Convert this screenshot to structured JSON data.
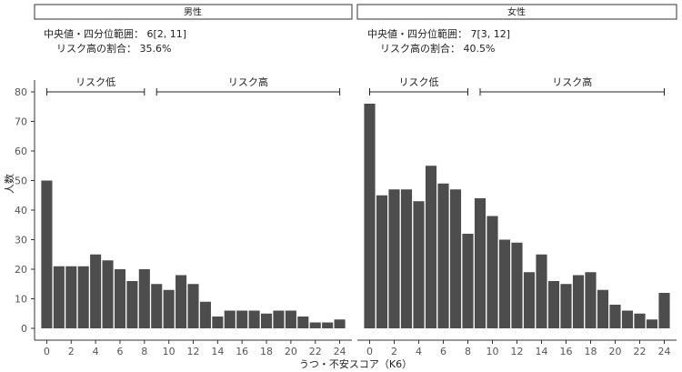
{
  "chart_data": {
    "type": "bar",
    "xlabel": "うつ・不安スコア（K6）",
    "ylabel": "人数",
    "ylim": [
      -4,
      84
    ],
    "yticks": [
      0,
      10,
      20,
      30,
      40,
      50,
      60,
      70,
      80
    ],
    "xlim": [
      -1,
      25
    ],
    "xticks": [
      0,
      2,
      4,
      6,
      8,
      10,
      12,
      14,
      16,
      18,
      20,
      22,
      24
    ],
    "x": [
      0,
      1,
      2,
      3,
      4,
      5,
      6,
      7,
      8,
      9,
      10,
      11,
      12,
      13,
      14,
      15,
      16,
      17,
      18,
      19,
      20,
      21,
      22,
      23,
      24
    ],
    "bar_color": "#4d4d4d",
    "grid": false,
    "panels": [
      {
        "strip": "男性",
        "stat_median": "中央値・四分位範囲： 6[2, 11]",
        "stat_ratio": "リスク高の割合： 35.6%",
        "brackets": [
          {
            "label": "リスク低",
            "from": 0,
            "to": 8,
            "y": 80
          },
          {
            "label": "リスク高",
            "from": 9,
            "to": 24,
            "y": 80
          }
        ],
        "values": [
          50,
          21,
          21,
          21,
          25,
          23,
          20,
          16,
          20,
          15,
          13,
          18,
          15,
          9,
          4,
          6,
          6,
          6,
          5,
          6,
          6,
          4,
          2,
          2,
          3
        ]
      },
      {
        "strip": "女性",
        "stat_median": "中央値・四分位範囲： 7[3, 12]",
        "stat_ratio": "リスク高の割合： 40.5%",
        "brackets": [
          {
            "label": "リスク低",
            "from": 0,
            "to": 8,
            "y": 80
          },
          {
            "label": "リスク高",
            "from": 9,
            "to": 24,
            "y": 80
          }
        ],
        "values": [
          76,
          45,
          47,
          47,
          43,
          55,
          49,
          47,
          32,
          44,
          38,
          30,
          29,
          19,
          25,
          16,
          15,
          18,
          19,
          13,
          8,
          6,
          5,
          3,
          12
        ]
      }
    ]
  }
}
